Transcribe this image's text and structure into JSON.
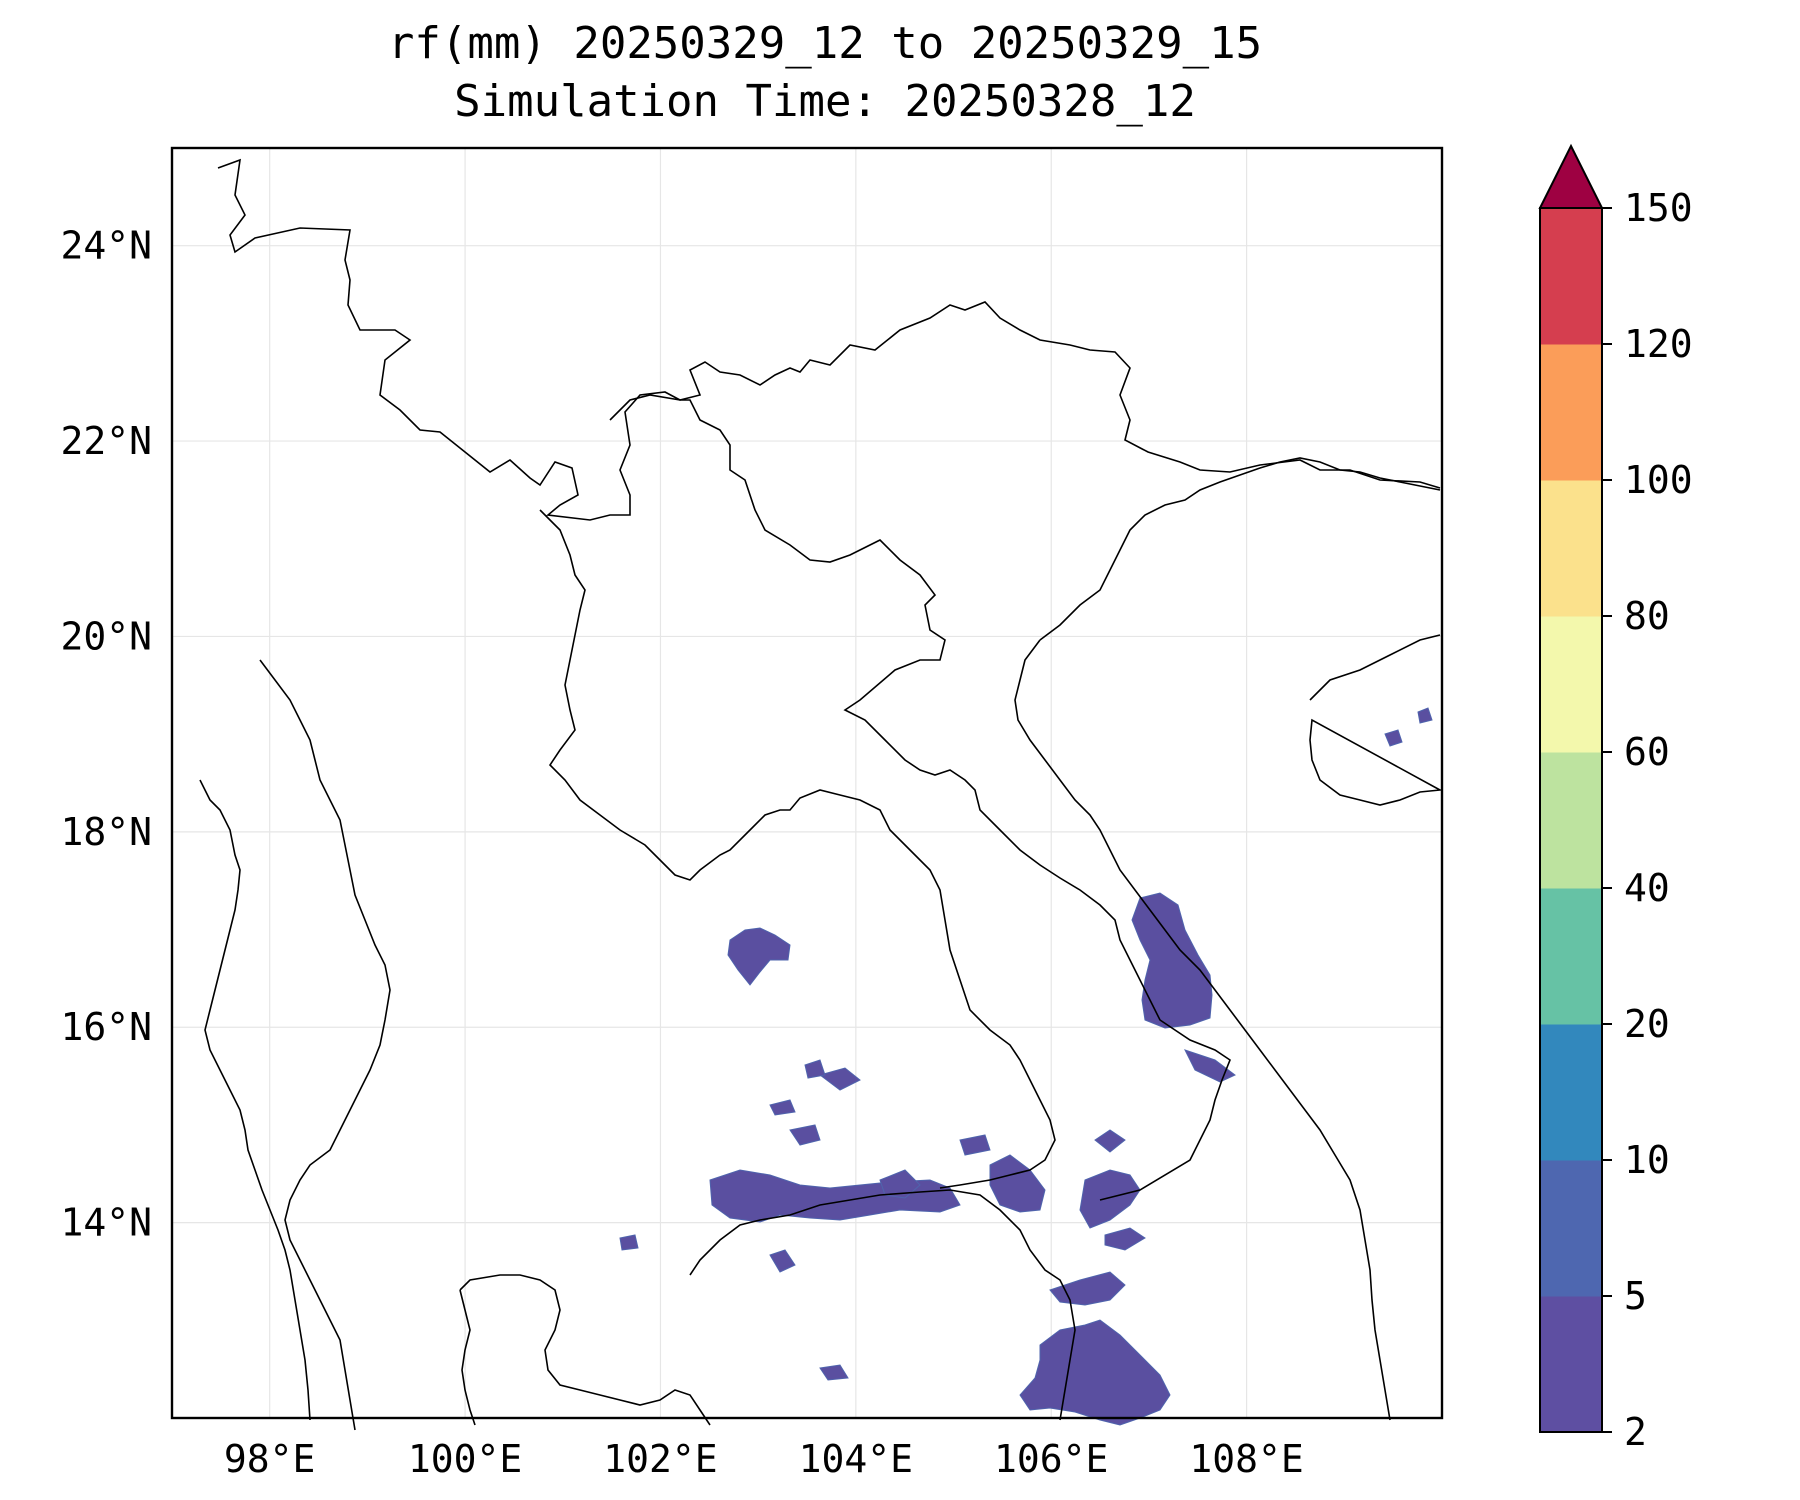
{
  "title": {
    "line1": "rf(mm) 20250329_12 to 20250329_15",
    "line2": "Simulation Time: 20250328_12"
  },
  "map": {
    "lon_range": [
      97,
      110
    ],
    "lat_range": [
      12,
      25
    ],
    "lon_ticks": [
      "98°E",
      "100°E",
      "102°E",
      "104°E",
      "106°E",
      "108°E"
    ],
    "lat_ticks": [
      "24°N",
      "22°N",
      "20°N",
      "18°N",
      "16°N",
      "14°N"
    ],
    "gridlines": true,
    "rain_color": "#5a4fa0",
    "rain_color_light": "#4f64ad"
  },
  "colorbar": {
    "levels": [
      "2",
      "5",
      "10",
      "20",
      "40",
      "60",
      "80",
      "100",
      "120",
      "150"
    ],
    "colors": [
      "#5e4fa2",
      "#4e67b0",
      "#3288bd",
      "#66c2a5",
      "#bde39f",
      "#f3f8ac",
      "#fbe18c",
      "#fb9d59",
      "#d53e4f",
      "#9e0142"
    ],
    "extend": "max"
  }
}
